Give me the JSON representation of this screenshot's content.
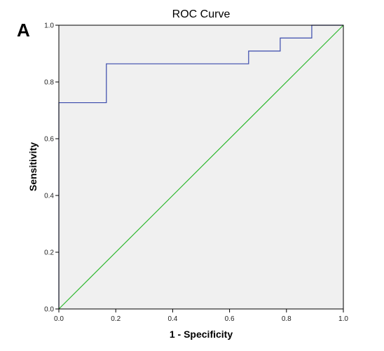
{
  "panel_label": "A",
  "chart_data": {
    "type": "line",
    "title": "ROC Curve",
    "xlabel": "1 - Specificity",
    "ylabel": "Sensitivity",
    "xlim": [
      0,
      1
    ],
    "ylim": [
      0,
      1
    ],
    "xticks": [
      "0.0",
      "0.2",
      "0.4",
      "0.6",
      "0.8",
      "1.0"
    ],
    "yticks": [
      "0.0",
      "0.2",
      "0.4",
      "0.6",
      "0.8",
      "1.0"
    ],
    "grid": false,
    "series": [
      {
        "color": "#3949ab",
        "step": true,
        "points": [
          [
            0,
            0
          ],
          [
            0,
            0.727
          ],
          [
            0.167,
            0.727
          ],
          [
            0.167,
            0.864
          ],
          [
            0.667,
            0.864
          ],
          [
            0.667,
            0.909
          ],
          [
            0.778,
            0.909
          ],
          [
            0.778,
            0.955
          ],
          [
            0.889,
            0.955
          ],
          [
            0.889,
            1.0
          ],
          [
            1.0,
            1.0
          ]
        ]
      },
      {
        "color": "#2eb82e",
        "step": false,
        "points": [
          [
            0,
            0
          ],
          [
            1,
            1
          ]
        ]
      }
    ],
    "plot_background": "#f0f0f0"
  }
}
